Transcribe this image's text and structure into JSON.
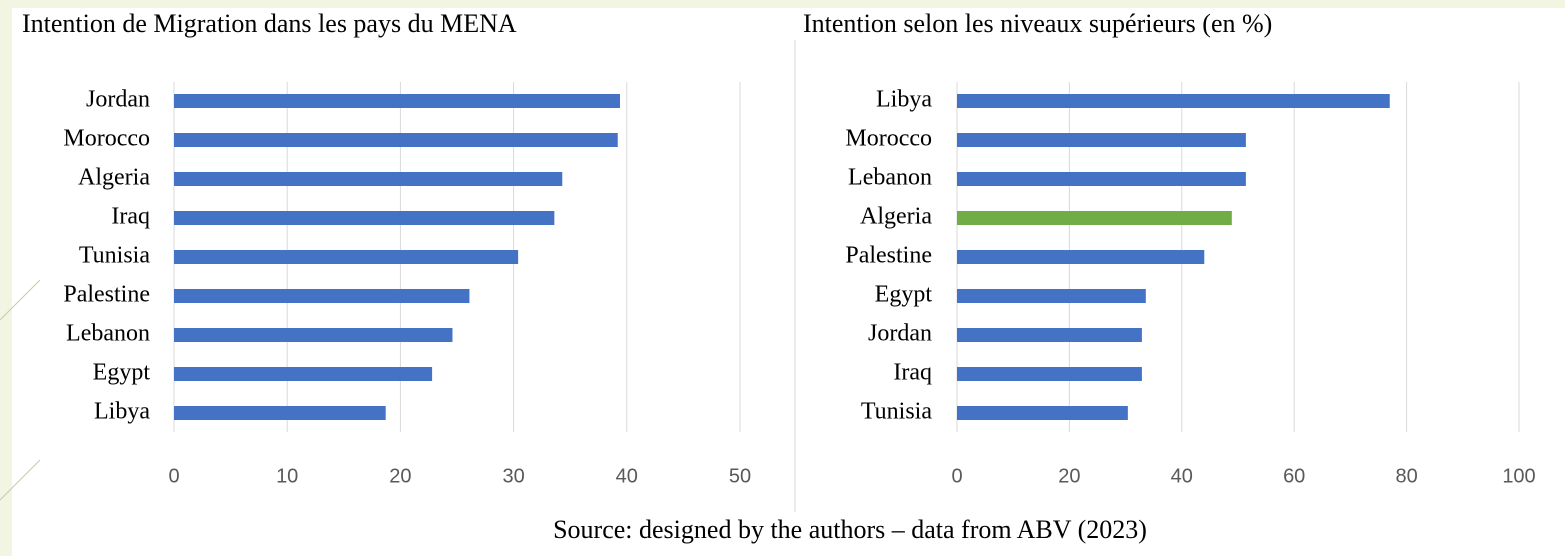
{
  "chart_data": [
    {
      "type": "hbar",
      "title": "Intention de Migration dans   les pays du MENA",
      "categories": [
        "Jordan",
        "Morocco",
        "Algeria",
        "Iraq",
        "Tunisia",
        "Palestine",
        "Lebanon",
        "Egypt",
        "Libya"
      ],
      "values": [
        39.4,
        39.2,
        34.3,
        33.6,
        30.4,
        26.1,
        24.6,
        22.8,
        18.7
      ],
      "color": "#4472c4",
      "xlim": [
        0,
        50
      ],
      "xticks": [
        0,
        10,
        20,
        30,
        40,
        50
      ],
      "grid": true
    },
    {
      "type": "hbar",
      "title": "Intention selon les niveaux supérieurs (en %)",
      "categories": [
        "Libya",
        "Morocco",
        "Lebanon",
        "Algeria",
        "Palestine",
        "Egypt",
        "Jordan",
        "Iraq",
        "Tunisia"
      ],
      "values": [
        77.0,
        51.4,
        51.4,
        48.9,
        44.0,
        33.6,
        32.9,
        32.9,
        30.4
      ],
      "colors": [
        "#4472c4",
        "#4472c4",
        "#4472c4",
        "#70ad47",
        "#4472c4",
        "#4472c4",
        "#4472c4",
        "#4472c4",
        "#4472c4"
      ],
      "xlim": [
        0,
        100
      ],
      "xticks": [
        0,
        20,
        40,
        60,
        80,
        100
      ],
      "grid": true
    }
  ],
  "source": "Source: designed by the authors – data from ABV (2023)"
}
